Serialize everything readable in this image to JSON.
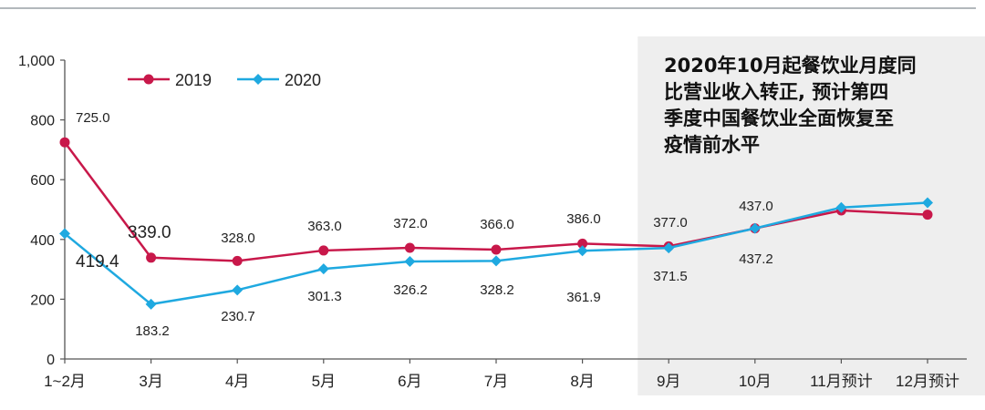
{
  "annotation": {
    "lines": [
      "2020年10月起餐饮业月度同",
      "比营业收入转正, 预计第四",
      "季度中国餐饮业全面恢复至",
      "疫情前水平"
    ]
  },
  "colors": {
    "s2019": "#c8184a",
    "s2020": "#1fa9e0",
    "shade": "#eeeeee",
    "axis": "#555555",
    "rule": "#9aa0a6"
  },
  "chart_data": {
    "type": "line",
    "categories": [
      "1~2月",
      "3月",
      "4月",
      "5月",
      "6月",
      "7月",
      "8月",
      "9月",
      "10月",
      "11月预计",
      "12月预计"
    ],
    "ylim": [
      0,
      1000
    ],
    "yticks": [
      "0",
      "200",
      "400",
      "600",
      "800",
      "1,000"
    ],
    "shaded_from_category": "9月",
    "legend_position": "top-left",
    "series": [
      {
        "name": "2019",
        "marker": "circle",
        "values": [
          725.0,
          339.0,
          328.0,
          363.0,
          372.0,
          366.0,
          386.0,
          377.0,
          437.0,
          497,
          483
        ],
        "labels": [
          "725.0",
          "339.0",
          "328.0",
          "363.0",
          "372.0",
          "366.0",
          "386.0",
          "377.0",
          "437.0",
          null,
          null
        ]
      },
      {
        "name": "2020",
        "marker": "diamond",
        "values": [
          419.4,
          183.2,
          230.7,
          301.3,
          326.2,
          328.2,
          361.9,
          371.5,
          437.2,
          507,
          523
        ],
        "labels": [
          "419.4",
          "183.2",
          "230.7",
          "301.3",
          "326.2",
          "328.2",
          "361.9",
          "371.5",
          "437.2",
          null,
          null
        ]
      }
    ]
  }
}
